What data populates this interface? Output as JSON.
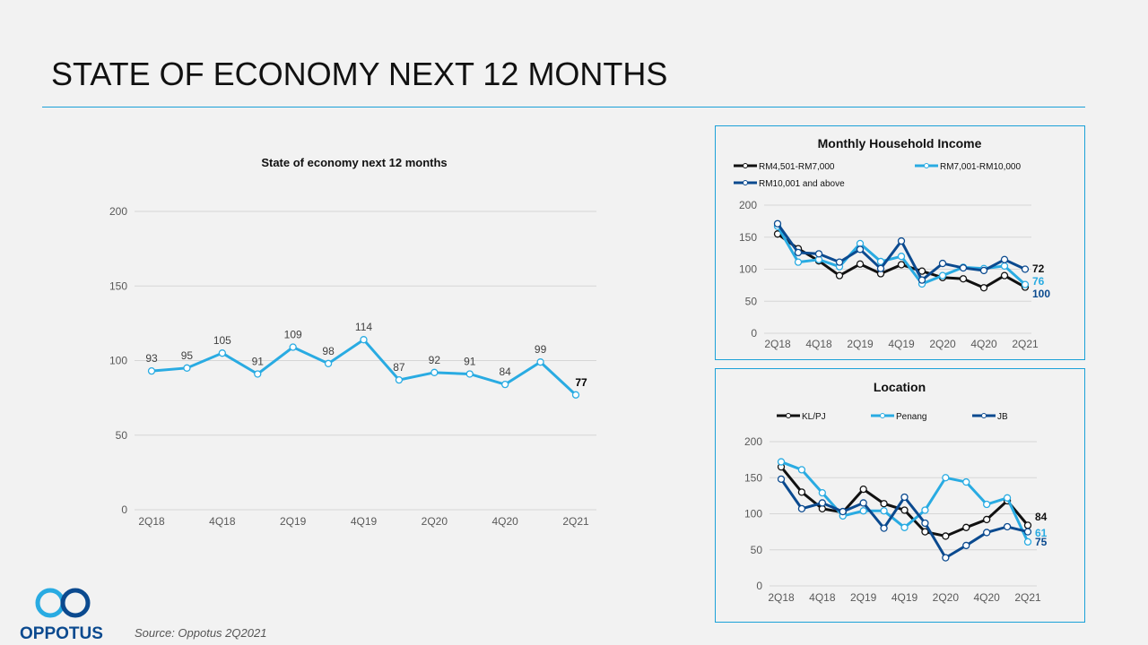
{
  "page": {
    "title": "STATE OF ECONOMY NEXT 12 MONTHS",
    "source": "Source: Oppotus 2Q2021",
    "logo": "OPPOTUS"
  },
  "colors": {
    "accent": "#1ba1d8",
    "black": "#111111",
    "light": "#29abe2",
    "dark": "#0b4a8f"
  },
  "chart_data": [
    {
      "type": "line",
      "title": "State  of economy next 12 months",
      "x": [
        "2Q18",
        "3Q18",
        "4Q18",
        "1Q19",
        "2Q19",
        "3Q19",
        "4Q19",
        "1Q20",
        "2Q20",
        "3Q20",
        "4Q20",
        "1Q21",
        "2Q21"
      ],
      "xticks": [
        "2Q18",
        "4Q18",
        "2Q19",
        "4Q19",
        "2Q20",
        "4Q20",
        "2Q21"
      ],
      "ylim": [
        0,
        200
      ],
      "yticks": [
        0,
        50,
        100,
        150,
        200
      ],
      "grid": true,
      "series": [
        {
          "values": [
            93,
            95,
            105,
            91,
            109,
            98,
            114,
            87,
            92,
            91,
            84,
            99,
            77
          ],
          "color": "#29abe2"
        }
      ]
    },
    {
      "type": "line",
      "title": "Monthly Household Income",
      "legend": "top",
      "x": [
        "2Q18",
        "3Q18",
        "4Q18",
        "1Q19",
        "2Q19",
        "3Q19",
        "4Q19",
        "1Q20",
        "2Q20",
        "3Q20",
        "4Q20",
        "1Q21",
        "2Q21"
      ],
      "xticks": [
        "2Q18",
        "4Q18",
        "2Q19",
        "4Q19",
        "2Q20",
        "4Q20",
        "2Q21"
      ],
      "ylim": [
        0,
        200
      ],
      "yticks": [
        0,
        50,
        100,
        150,
        200
      ],
      "grid": true,
      "series": [
        {
          "name": "RM4,501-RM7,000",
          "color": "#111111",
          "values": [
            155,
            132,
            113,
            90,
            108,
            93,
            107,
            97,
            87,
            85,
            71,
            90,
            72
          ]
        },
        {
          "name": "RM7,001-RM10,000",
          "color": "#29abe2",
          "values": [
            167,
            111,
            115,
            104,
            140,
            112,
            120,
            77,
            90,
            103,
            101,
            105,
            76
          ]
        },
        {
          "name": "RM10,001 and above",
          "color": "#0b4a8f",
          "values": [
            171,
            126,
            124,
            111,
            131,
            101,
            144,
            83,
            109,
            102,
            98,
            115,
            100
          ]
        }
      ]
    },
    {
      "type": "line",
      "title": "Location",
      "legend": "top",
      "x": [
        "2Q18",
        "3Q18",
        "4Q18",
        "1Q19",
        "2Q19",
        "3Q19",
        "4Q19",
        "1Q20",
        "2Q20",
        "3Q20",
        "4Q20",
        "1Q21",
        "2Q21"
      ],
      "xticks": [
        "2Q18",
        "4Q18",
        "2Q19",
        "4Q19",
        "2Q20",
        "4Q20",
        "2Q21"
      ],
      "ylim": [
        0,
        200
      ],
      "yticks": [
        0,
        50,
        100,
        150,
        200
      ],
      "grid": true,
      "series": [
        {
          "name": "KL/PJ",
          "color": "#111111",
          "values": [
            165,
            130,
            107,
            102,
            134,
            114,
            105,
            75,
            69,
            81,
            92,
            118,
            84
          ]
        },
        {
          "name": "Penang",
          "color": "#29abe2",
          "values": [
            172,
            161,
            129,
            97,
            104,
            104,
            81,
            105,
            150,
            144,
            113,
            122,
            61
          ]
        },
        {
          "name": "JB",
          "color": "#0b4a8f",
          "values": [
            148,
            107,
            115,
            103,
            115,
            80,
            123,
            87,
            39,
            56,
            74,
            82,
            75
          ]
        }
      ]
    }
  ]
}
